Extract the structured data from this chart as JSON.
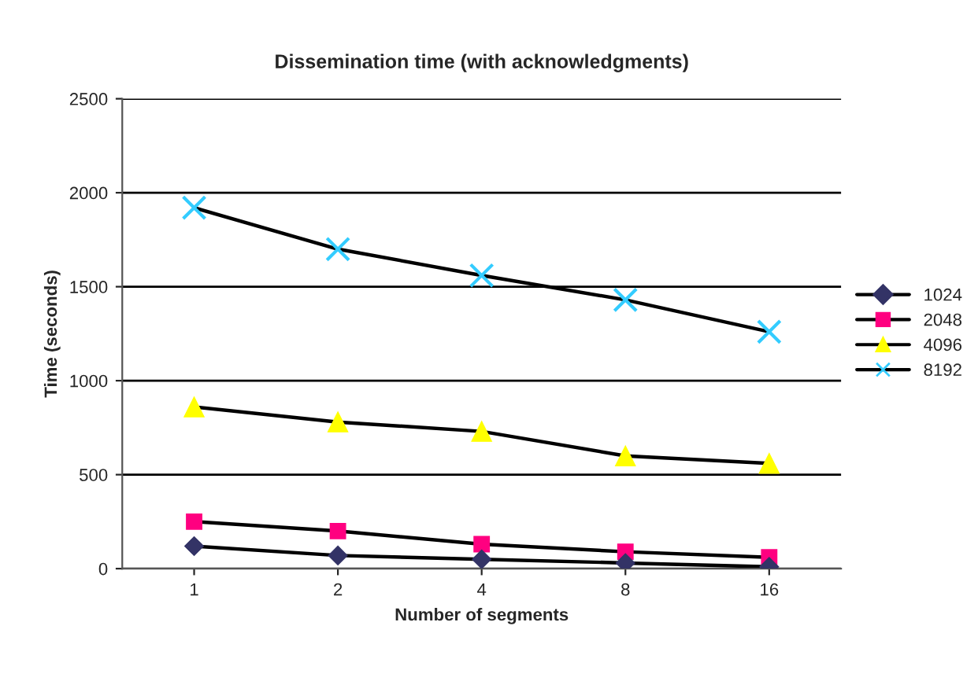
{
  "chart_data": {
    "type": "line",
    "title": "Dissemination time (with acknowledgments)",
    "xlabel": "Number of segments",
    "ylabel": "Time (seconds)",
    "categories": [
      "1",
      "2",
      "4",
      "8",
      "16"
    ],
    "series": [
      {
        "name": "1024",
        "color": "#333366",
        "marker": "diamond",
        "values": [
          120,
          70,
          50,
          30,
          10
        ]
      },
      {
        "name": "2048",
        "color": "#ff0080",
        "marker": "square",
        "values": [
          250,
          200,
          130,
          90,
          60
        ]
      },
      {
        "name": "4096",
        "color": "#ffff00",
        "marker": "triangle",
        "values": [
          860,
          780,
          730,
          600,
          560
        ]
      },
      {
        "name": "8192",
        "color": "#33ccff",
        "marker": "cross",
        "values": [
          1920,
          1700,
          1560,
          1430,
          1260
        ]
      }
    ],
    "ylim": [
      0,
      2500
    ],
    "yticks": [
      0,
      500,
      1000,
      1500,
      2000,
      2500
    ],
    "grid": "y",
    "legend": "right",
    "line_style": "solid"
  }
}
